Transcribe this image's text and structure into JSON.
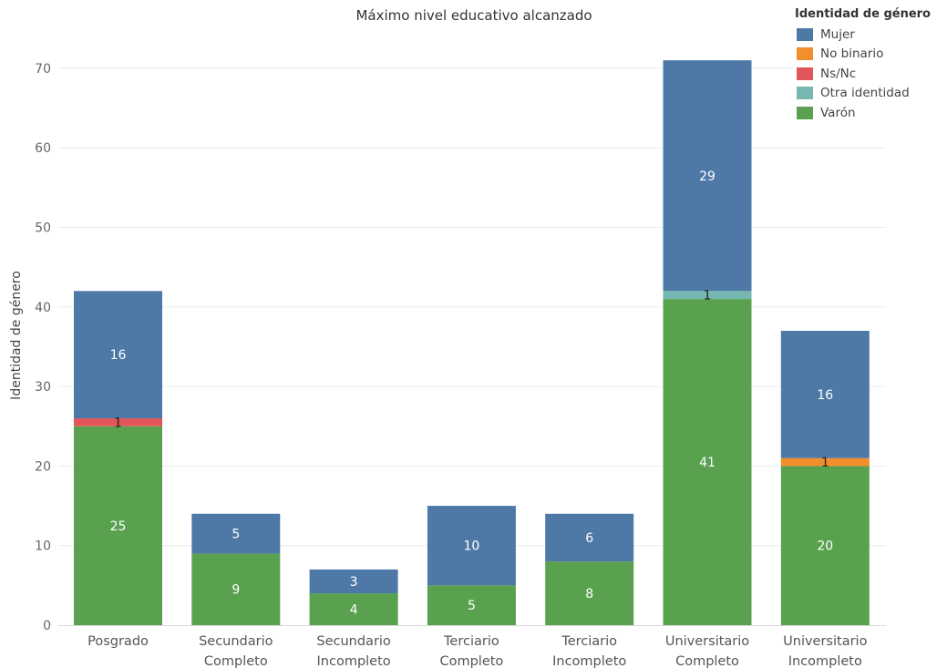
{
  "chart_data": {
    "type": "bar",
    "stacked": true,
    "title": "Máximo nivel educativo alcanzado",
    "ylabel": "Identidad de género",
    "xlabel": "",
    "ylim": [
      0,
      75
    ],
    "yticks": [
      0,
      10,
      20,
      30,
      40,
      50,
      60,
      70
    ],
    "grid": true,
    "legend_position": "top-right",
    "legend_title": "Identidad de género",
    "categories": [
      [
        "Posgrado"
      ],
      [
        "Secundario",
        "Completo"
      ],
      [
        "Secundario",
        "Incompleto"
      ],
      [
        "Terciario",
        "Completo"
      ],
      [
        "Terciario",
        "Incompleto"
      ],
      [
        "Universitario",
        "Completo"
      ],
      [
        "Universitario",
        "Incompleto"
      ]
    ],
    "series": [
      {
        "name": "Varón",
        "color": "#59a14f",
        "values": [
          25,
          9,
          4,
          5,
          8,
          41,
          20
        ]
      },
      {
        "name": "Otra identidad",
        "color": "#76b7b2",
        "values": [
          0,
          0,
          0,
          0,
          0,
          1,
          0
        ]
      },
      {
        "name": "Ns/Nc",
        "color": "#e15759",
        "values": [
          1,
          0,
          0,
          0,
          0,
          0,
          0
        ]
      },
      {
        "name": "No binario",
        "color": "#f28e2b",
        "values": [
          0,
          0,
          0,
          0,
          0,
          0,
          1
        ]
      },
      {
        "name": "Mujer",
        "color": "#4e79a7",
        "values": [
          16,
          5,
          3,
          10,
          6,
          29,
          16
        ]
      }
    ],
    "legend_order": [
      "Mujer",
      "No binario",
      "Ns/Nc",
      "Otra identidad",
      "Varón"
    ]
  }
}
